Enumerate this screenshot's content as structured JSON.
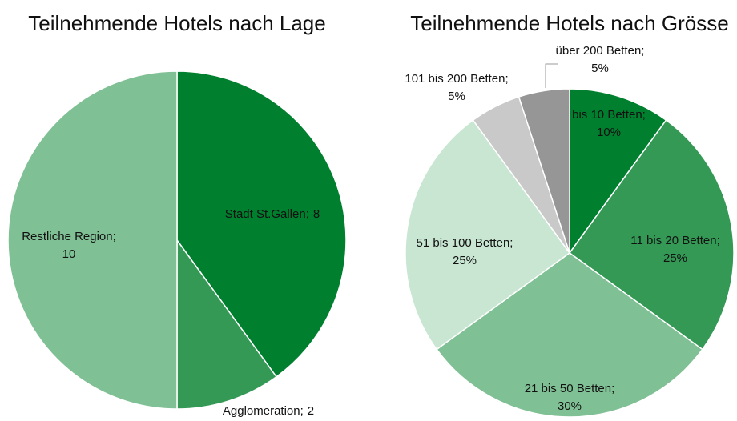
{
  "chart_data": [
    {
      "type": "pie",
      "title": "Teilnehmende Hotels nach Lage",
      "categories": [
        "Stadt St.Gallen;",
        "Agglomeration;",
        "Restliche Region;"
      ],
      "values": [
        8,
        2,
        10
      ],
      "colors": [
        "#00802f",
        "#339955",
        "#80c095"
      ]
    },
    {
      "type": "pie",
      "title": "Teilnehmende Hotels nach Grösse",
      "categories": [
        "bis 10 Betten;",
        "11 bis 20 Betten;",
        "21 bis 50 Betten;",
        "51 bis 100 Betten;",
        "101 bis 200 Betten;",
        "über 200 Betten;"
      ],
      "values": [
        10,
        25,
        30,
        25,
        5,
        5
      ],
      "value_labels": [
        "10%",
        "25%",
        "30%",
        "25%",
        "5%",
        "5%"
      ],
      "colors": [
        "#00802f",
        "#339955",
        "#80c095",
        "#c8e6d2",
        "#c9c9c9",
        "#969696"
      ]
    }
  ]
}
